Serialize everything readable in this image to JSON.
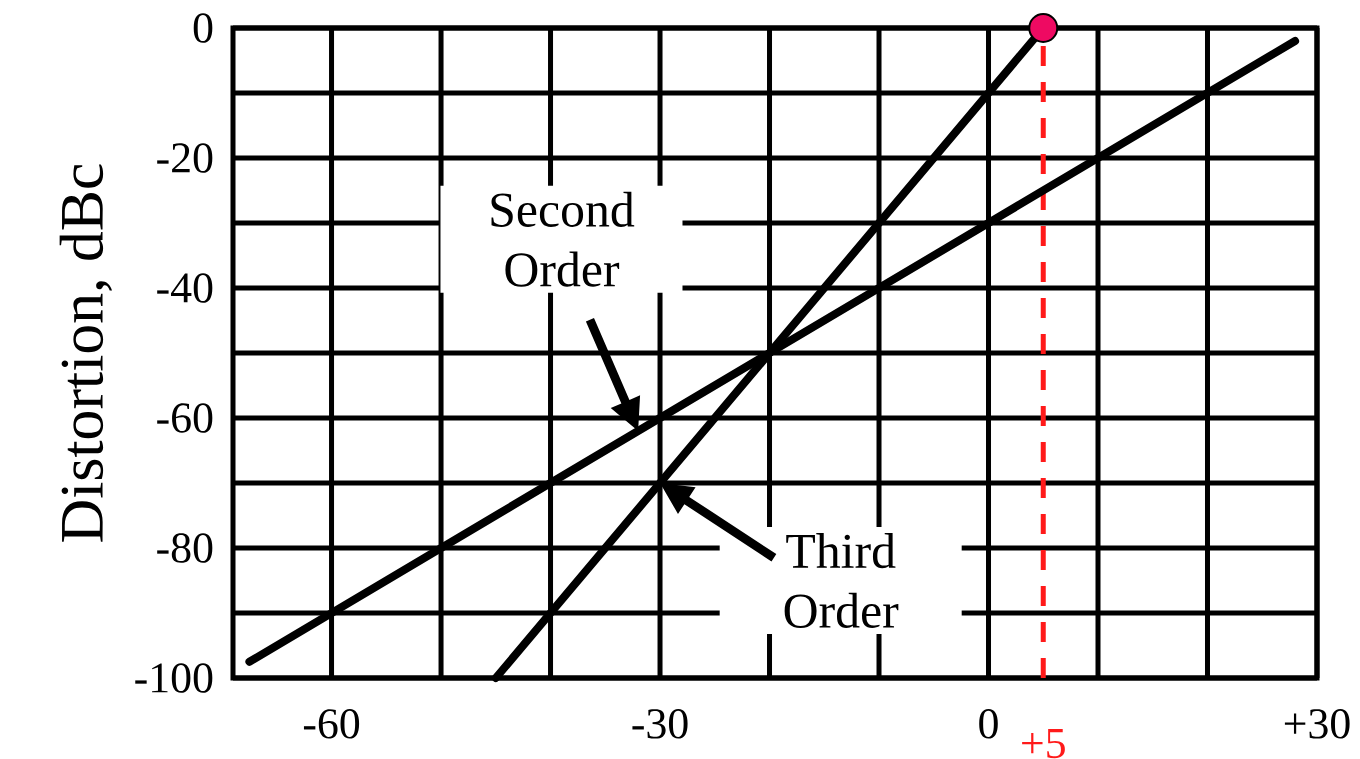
{
  "chart_data": {
    "type": "line",
    "ylabel": "Distortion, dBc",
    "annotations": [
      {
        "text": "Second Order",
        "x": -32,
        "y": -62
      },
      {
        "text": "Third Order",
        "x": -30,
        "y": -70
      }
    ],
    "series": [
      {
        "color": "#000000",
        "x": [
          -67.5,
          28
        ],
        "values": [
          -97.5,
          -2
        ]
      },
      {
        "color": "#000000",
        "x": [
          -45,
          5
        ],
        "values": [
          -100,
          0
        ]
      },
      {
        "type": "scatter",
        "color": "#ee0a62",
        "marker": "circle",
        "x": [
          5
        ],
        "values": [
          0
        ]
      }
    ],
    "xlim": [
      -69,
      30
    ],
    "ylim": [
      -100,
      0
    ],
    "xticks": [
      -60,
      {
        "value": -50,
        "label": null
      },
      {
        "value": -40,
        "label": null
      },
      -30,
      {
        "value": -20,
        "label": null
      },
      {
        "value": -10,
        "label": null
      },
      0,
      {
        "value": 10,
        "label": null
      },
      {
        "value": 20,
        "label": null
      },
      {
        "value": 30,
        "label": "+30"
      }
    ],
    "yticks": [
      -100,
      {
        "value": -90,
        "label": null
      },
      -80,
      {
        "value": -70,
        "label": null
      },
      -60,
      {
        "value": -50,
        "label": null
      },
      -40,
      {
        "value": -30,
        "label": null
      },
      -20,
      {
        "value": -10,
        "label": null
      },
      0
    ],
    "grid": true,
    "marker": "none",
    "line_style": "solid",
    "ref_lines": [
      {
        "axis": "x",
        "value": 5,
        "label": "+5",
        "color": "#ff1a1a",
        "line_style": "dashed"
      }
    ]
  }
}
